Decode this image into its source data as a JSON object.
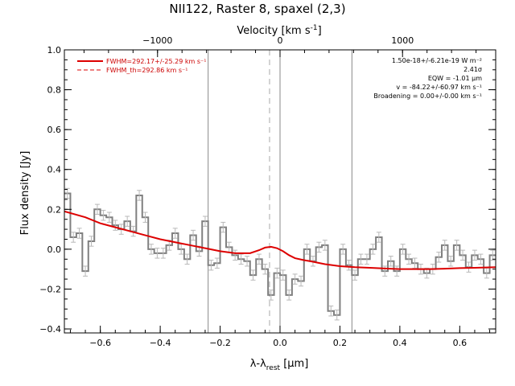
{
  "chart_data": {
    "type": "line",
    "title": "NII122, Raster 8, spaxel (2,3)",
    "xlabel": "λ-λ_rest [μm]",
    "xlabel_parts": {
      "base": "λ-λ",
      "sub": "rest",
      "unit": " [μm]"
    },
    "ylabel": "Flux density [Jy]",
    "top_axis_label": "Velocity [km s⁻¹]",
    "top_axis_label_parts": {
      "base": "Velocity [km s",
      "sup": "-1",
      "end": "]"
    },
    "xlim": [
      -0.72,
      0.72
    ],
    "ylim": [
      -0.42,
      1.0
    ],
    "x_ticks": [
      -0.6,
      -0.4,
      -0.2,
      0.0,
      0.2,
      0.4,
      0.6
    ],
    "x_tick_labels": [
      "−0.6",
      "−0.4",
      "−0.2",
      "0.0",
      "0.2",
      "0.4",
      "0.6"
    ],
    "y_ticks": [
      -0.4,
      -0.2,
      0.0,
      0.2,
      0.4,
      0.6,
      0.8,
      1.0
    ],
    "y_tick_labels": [
      "−0.4",
      "−0.2",
      "0.0",
      "0.2",
      "0.4",
      "0.6",
      "0.8",
      "1.0"
    ],
    "top_ticks_velocity": [
      -1000,
      0,
      1000
    ],
    "top_tick_labels": [
      "−1000",
      "0",
      "1000"
    ],
    "velocity_per_micron": 2445,
    "legend": [
      {
        "label": "FWHM=292.17+/-25.29 km s⁻¹",
        "style": "solid",
        "color": "#dd0000"
      },
      {
        "label": "FWHM_th=292.86 km s⁻¹",
        "style": "dashed",
        "color": "#dd0000"
      }
    ],
    "annotations": [
      "1.50e-18+/-6.21e-19 W m⁻²",
      "2.41σ",
      "EQW = -1.01 μm",
      "v = -84.22+/-60.97 km s⁻¹",
      "Broadening = 0.00+/-0.00 km s⁻¹"
    ],
    "vertical_lines": [
      {
        "x": -0.24,
        "style": "solid"
      },
      {
        "x": 0.0,
        "style": "solid"
      },
      {
        "x": 0.24,
        "style": "solid"
      },
      {
        "x": -0.035,
        "style": "dashed"
      }
    ],
    "series": [
      {
        "name": "spectrum",
        "style": "histogram",
        "color": "#808080",
        "x_step": 0.02,
        "x": [
          -0.72,
          -0.7,
          -0.68,
          -0.66,
          -0.64,
          -0.62,
          -0.6,
          -0.58,
          -0.56,
          -0.54,
          -0.52,
          -0.5,
          -0.48,
          -0.46,
          -0.44,
          -0.42,
          -0.4,
          -0.38,
          -0.36,
          -0.34,
          -0.32,
          -0.3,
          -0.28,
          -0.26,
          -0.24,
          -0.22,
          -0.2,
          -0.18,
          -0.16,
          -0.14,
          -0.12,
          -0.1,
          -0.08,
          -0.06,
          -0.04,
          -0.02,
          0.0,
          0.02,
          0.04,
          0.06,
          0.08,
          0.1,
          0.12,
          0.14,
          0.16,
          0.18,
          0.2,
          0.22,
          0.24,
          0.26,
          0.28,
          0.3,
          0.32,
          0.34,
          0.36,
          0.38,
          0.4,
          0.42,
          0.44,
          0.46,
          0.48,
          0.5,
          0.52,
          0.54,
          0.56,
          0.58,
          0.6,
          0.62,
          0.64,
          0.66,
          0.68,
          0.7
        ],
        "values": [
          0.28,
          0.06,
          0.08,
          -0.11,
          0.04,
          0.2,
          0.17,
          0.16,
          0.12,
          0.1,
          0.14,
          0.09,
          0.27,
          0.16,
          0.0,
          -0.02,
          -0.02,
          0.02,
          0.08,
          0.0,
          -0.05,
          0.07,
          -0.01,
          0.14,
          -0.08,
          -0.07,
          0.11,
          0.01,
          -0.03,
          -0.05,
          -0.06,
          -0.13,
          -0.05,
          -0.1,
          -0.23,
          -0.12,
          -0.13,
          -0.23,
          -0.15,
          -0.16,
          0.0,
          -0.06,
          0.01,
          0.02,
          -0.31,
          -0.33,
          0.0,
          -0.08,
          -0.13,
          -0.05,
          -0.05,
          0.0,
          0.06,
          -0.11,
          -0.06,
          -0.11,
          0.0,
          -0.05,
          -0.07,
          -0.1,
          -0.12,
          -0.1,
          -0.04,
          0.02,
          -0.06,
          0.02,
          -0.03,
          -0.09,
          -0.03,
          -0.05,
          -0.12,
          -0.03
        ],
        "error": 0.025
      },
      {
        "name": "fit",
        "style": "line",
        "color": "#dd0000",
        "x": [
          -0.72,
          -0.65,
          -0.6,
          -0.55,
          -0.5,
          -0.45,
          -0.4,
          -0.35,
          -0.3,
          -0.25,
          -0.2,
          -0.15,
          -0.1,
          -0.07,
          -0.05,
          -0.03,
          -0.01,
          0.01,
          0.03,
          0.05,
          0.08,
          0.1,
          0.15,
          0.2,
          0.25,
          0.3,
          0.35,
          0.4,
          0.45,
          0.5,
          0.55,
          0.6,
          0.65,
          0.72
        ],
        "values": [
          0.19,
          0.16,
          0.13,
          0.11,
          0.09,
          0.07,
          0.05,
          0.035,
          0.02,
          0.005,
          -0.01,
          -0.02,
          -0.02,
          -0.005,
          0.008,
          0.012,
          0.005,
          -0.01,
          -0.03,
          -0.045,
          -0.055,
          -0.06,
          -0.075,
          -0.085,
          -0.09,
          -0.093,
          -0.097,
          -0.1,
          -0.1,
          -0.1,
          -0.098,
          -0.095,
          -0.093,
          -0.09
        ]
      }
    ]
  }
}
